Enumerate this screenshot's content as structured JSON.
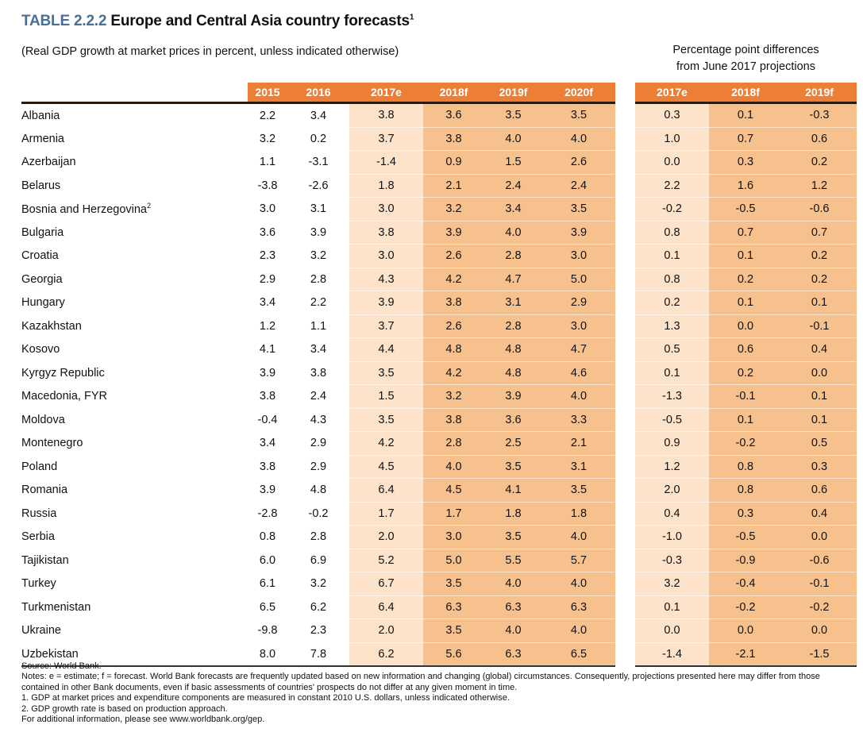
{
  "title": {
    "number": "TABLE 2.2.2",
    "text": "Europe and Central Asia country forecasts",
    "footnote_mark": "1"
  },
  "subtitle": "(Real GDP growth at market prices in percent, unless indicated otherwise)",
  "diff_header": [
    "Percentage point differences",
    "from June 2017 projections"
  ],
  "columns": [
    "2015",
    "2016",
    "2017e",
    "2018f",
    "2019f",
    "2020f"
  ],
  "diff_columns": [
    "2017e",
    "2018f",
    "2019f"
  ],
  "colors": {
    "header": "#ec7f35",
    "estimate_column": "#fce3c9",
    "forecast_columns": "#f7c18e",
    "title_number": "#4a6f96"
  },
  "rows": [
    {
      "country": "Albania",
      "values": [
        "2.2",
        "3.4",
        "3.8",
        "3.6",
        "3.5",
        "3.5"
      ],
      "diff": [
        "0.3",
        "0.1",
        "-0.3"
      ]
    },
    {
      "country": "Armenia",
      "values": [
        "3.2",
        "0.2",
        "3.7",
        "3.8",
        "4.0",
        "4.0"
      ],
      "diff": [
        "1.0",
        "0.7",
        "0.6"
      ]
    },
    {
      "country": "Azerbaijan",
      "values": [
        "1.1",
        "-3.1",
        "-1.4",
        "0.9",
        "1.5",
        "2.6"
      ],
      "diff": [
        "0.0",
        "0.3",
        "0.2"
      ]
    },
    {
      "country": "Belarus",
      "values": [
        "-3.8",
        "-2.6",
        "1.8",
        "2.1",
        "2.4",
        "2.4"
      ],
      "diff": [
        "2.2",
        "1.6",
        "1.2"
      ]
    },
    {
      "country": "Bosnia and Herzegovina",
      "note": "2",
      "values": [
        "3.0",
        "3.1",
        "3.0",
        "3.2",
        "3.4",
        "3.5"
      ],
      "diff": [
        "-0.2",
        "-0.5",
        "-0.6"
      ]
    },
    {
      "country": "Bulgaria",
      "values": [
        "3.6",
        "3.9",
        "3.8",
        "3.9",
        "4.0",
        "3.9"
      ],
      "diff": [
        "0.8",
        "0.7",
        "0.7"
      ]
    },
    {
      "country": "Croatia",
      "values": [
        "2.3",
        "3.2",
        "3.0",
        "2.6",
        "2.8",
        "3.0"
      ],
      "diff": [
        "0.1",
        "0.1",
        "0.2"
      ]
    },
    {
      "country": "Georgia",
      "values": [
        "2.9",
        "2.8",
        "4.3",
        "4.2",
        "4.7",
        "5.0"
      ],
      "diff": [
        "0.8",
        "0.2",
        "0.2"
      ]
    },
    {
      "country": "Hungary",
      "values": [
        "3.4",
        "2.2",
        "3.9",
        "3.8",
        "3.1",
        "2.9"
      ],
      "diff": [
        "0.2",
        "0.1",
        "0.1"
      ]
    },
    {
      "country": "Kazakhstan",
      "values": [
        "1.2",
        "1.1",
        "3.7",
        "2.6",
        "2.8",
        "3.0"
      ],
      "diff": [
        "1.3",
        "0.0",
        "-0.1"
      ]
    },
    {
      "country": "Kosovo",
      "values": [
        "4.1",
        "3.4",
        "4.4",
        "4.8",
        "4.8",
        "4.7"
      ],
      "diff": [
        "0.5",
        "0.6",
        "0.4"
      ]
    },
    {
      "country": "Kyrgyz Republic",
      "values": [
        "3.9",
        "3.8",
        "3.5",
        "4.2",
        "4.8",
        "4.6"
      ],
      "diff": [
        "0.1",
        "0.2",
        "0.0"
      ]
    },
    {
      "country": "Macedonia, FYR",
      "values": [
        "3.8",
        "2.4",
        "1.5",
        "3.2",
        "3.9",
        "4.0"
      ],
      "diff": [
        "-1.3",
        "-0.1",
        "0.1"
      ]
    },
    {
      "country": "Moldova",
      "values": [
        "-0.4",
        "4.3",
        "3.5",
        "3.8",
        "3.6",
        "3.3"
      ],
      "diff": [
        "-0.5",
        "0.1",
        "0.1"
      ]
    },
    {
      "country": "Montenegro",
      "values": [
        "3.4",
        "2.9",
        "4.2",
        "2.8",
        "2.5",
        "2.1"
      ],
      "diff": [
        "0.9",
        "-0.2",
        "0.5"
      ]
    },
    {
      "country": "Poland",
      "values": [
        "3.8",
        "2.9",
        "4.5",
        "4.0",
        "3.5",
        "3.1"
      ],
      "diff": [
        "1.2",
        "0.8",
        "0.3"
      ]
    },
    {
      "country": "Romania",
      "values": [
        "3.9",
        "4.8",
        "6.4",
        "4.5",
        "4.1",
        "3.5"
      ],
      "diff": [
        "2.0",
        "0.8",
        "0.6"
      ]
    },
    {
      "country": "Russia",
      "values": [
        "-2.8",
        "-0.2",
        "1.7",
        "1.7",
        "1.8",
        "1.8"
      ],
      "diff": [
        "0.4",
        "0.3",
        "0.4"
      ]
    },
    {
      "country": "Serbia",
      "values": [
        "0.8",
        "2.8",
        "2.0",
        "3.0",
        "3.5",
        "4.0"
      ],
      "diff": [
        "-1.0",
        "-0.5",
        "0.0"
      ]
    },
    {
      "country": "Tajikistan",
      "values": [
        "6.0",
        "6.9",
        "5.2",
        "5.0",
        "5.5",
        "5.7"
      ],
      "diff": [
        "-0.3",
        "-0.9",
        "-0.6"
      ]
    },
    {
      "country": "Turkey",
      "values": [
        "6.1",
        "3.2",
        "6.7",
        "3.5",
        "4.0",
        "4.0"
      ],
      "diff": [
        "3.2",
        "-0.4",
        "-0.1"
      ]
    },
    {
      "country": "Turkmenistan",
      "values": [
        "6.5",
        "6.2",
        "6.4",
        "6.3",
        "6.3",
        "6.3"
      ],
      "diff": [
        "0.1",
        "-0.2",
        "-0.2"
      ]
    },
    {
      "country": "Ukraine",
      "values": [
        "-9.8",
        "2.3",
        "2.0",
        "3.5",
        "4.0",
        "4.0"
      ],
      "diff": [
        "0.0",
        "0.0",
        "0.0"
      ]
    },
    {
      "country": "Uzbekistan",
      "values": [
        "8.0",
        "7.8",
        "6.2",
        "5.6",
        "6.3",
        "6.5"
      ],
      "diff": [
        "-1.4",
        "-2.1",
        "-1.5"
      ]
    }
  ],
  "footer": [
    "Source: World Bank.",
    "Notes: e = estimate; f = forecast. World Bank forecasts are frequently updated based on new information and changing (global) circumstances. Consequently, projections presented here may differ from those contained in other Bank documents, even if basic assessments of countries' prospects do not differ at any given moment in time.",
    "1. GDP at market prices and expenditure components are measured in constant 2010 U.S. dollars, unless indicated otherwise.",
    "2. GDP growth rate is based on production approach.",
    "For additional information, please see www.worldbank.org/gep."
  ]
}
